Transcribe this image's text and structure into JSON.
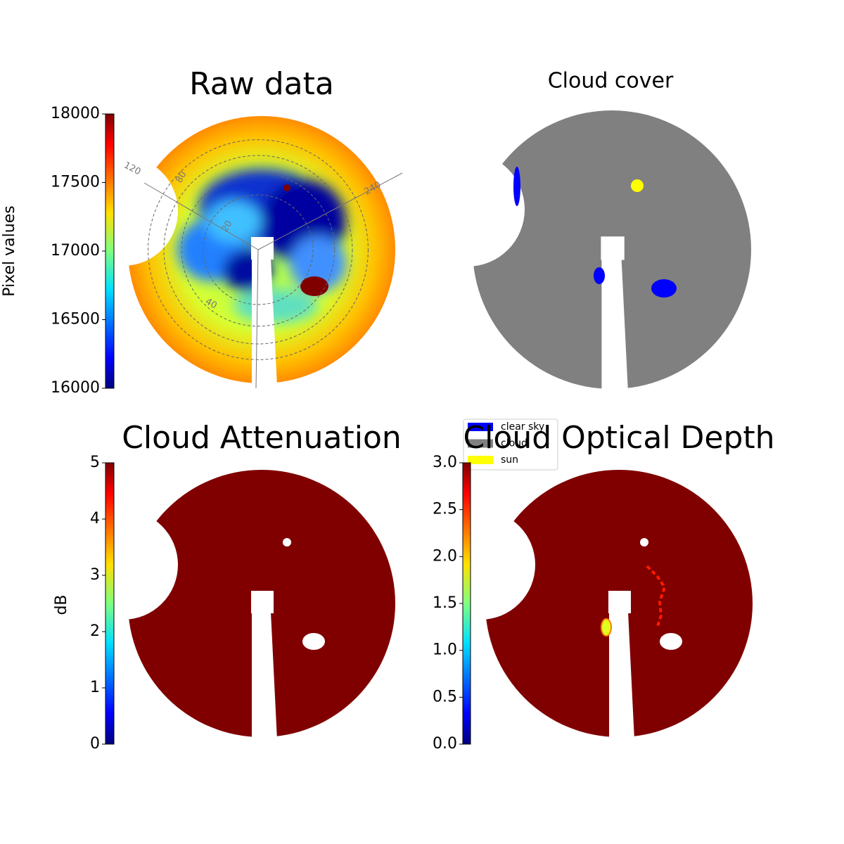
{
  "chart_data": [
    {
      "type": "image",
      "title": "Raw data",
      "colorbar_label": "Pixel values",
      "colormap": "jet",
      "clim": [
        16000,
        18000
      ],
      "cticks": [
        16000,
        16500,
        17000,
        17500,
        18000
      ],
      "polar_labels": [
        "120",
        "80",
        "240",
        "20",
        "40"
      ]
    },
    {
      "type": "image",
      "title": "Cloud cover",
      "legend": [
        {
          "label": "clear sky",
          "color": "#0000ff"
        },
        {
          "label": "cloud",
          "color": "#808080"
        },
        {
          "label": "sun",
          "color": "#ffff00"
        }
      ]
    },
    {
      "type": "image",
      "title": "Cloud Attenuation",
      "colorbar_label": "dB",
      "colormap": "jet",
      "clim": [
        0,
        5
      ],
      "cticks": [
        0,
        1,
        2,
        3,
        4,
        5
      ]
    },
    {
      "type": "image",
      "title": "Cloud Optical Depth",
      "colormap": "jet",
      "clim": [
        0,
        3
      ],
      "cticks": [
        {
          "value": 0,
          "label": "0.0"
        },
        {
          "value": 0.5,
          "label": "0.5"
        },
        {
          "value": 1,
          "label": "1.0"
        },
        {
          "value": 1.5,
          "label": "1.5"
        },
        {
          "value": 2,
          "label": "2.0"
        },
        {
          "value": 2.5,
          "label": "2.5"
        },
        {
          "value": 3,
          "label": "3.0"
        }
      ]
    }
  ]
}
